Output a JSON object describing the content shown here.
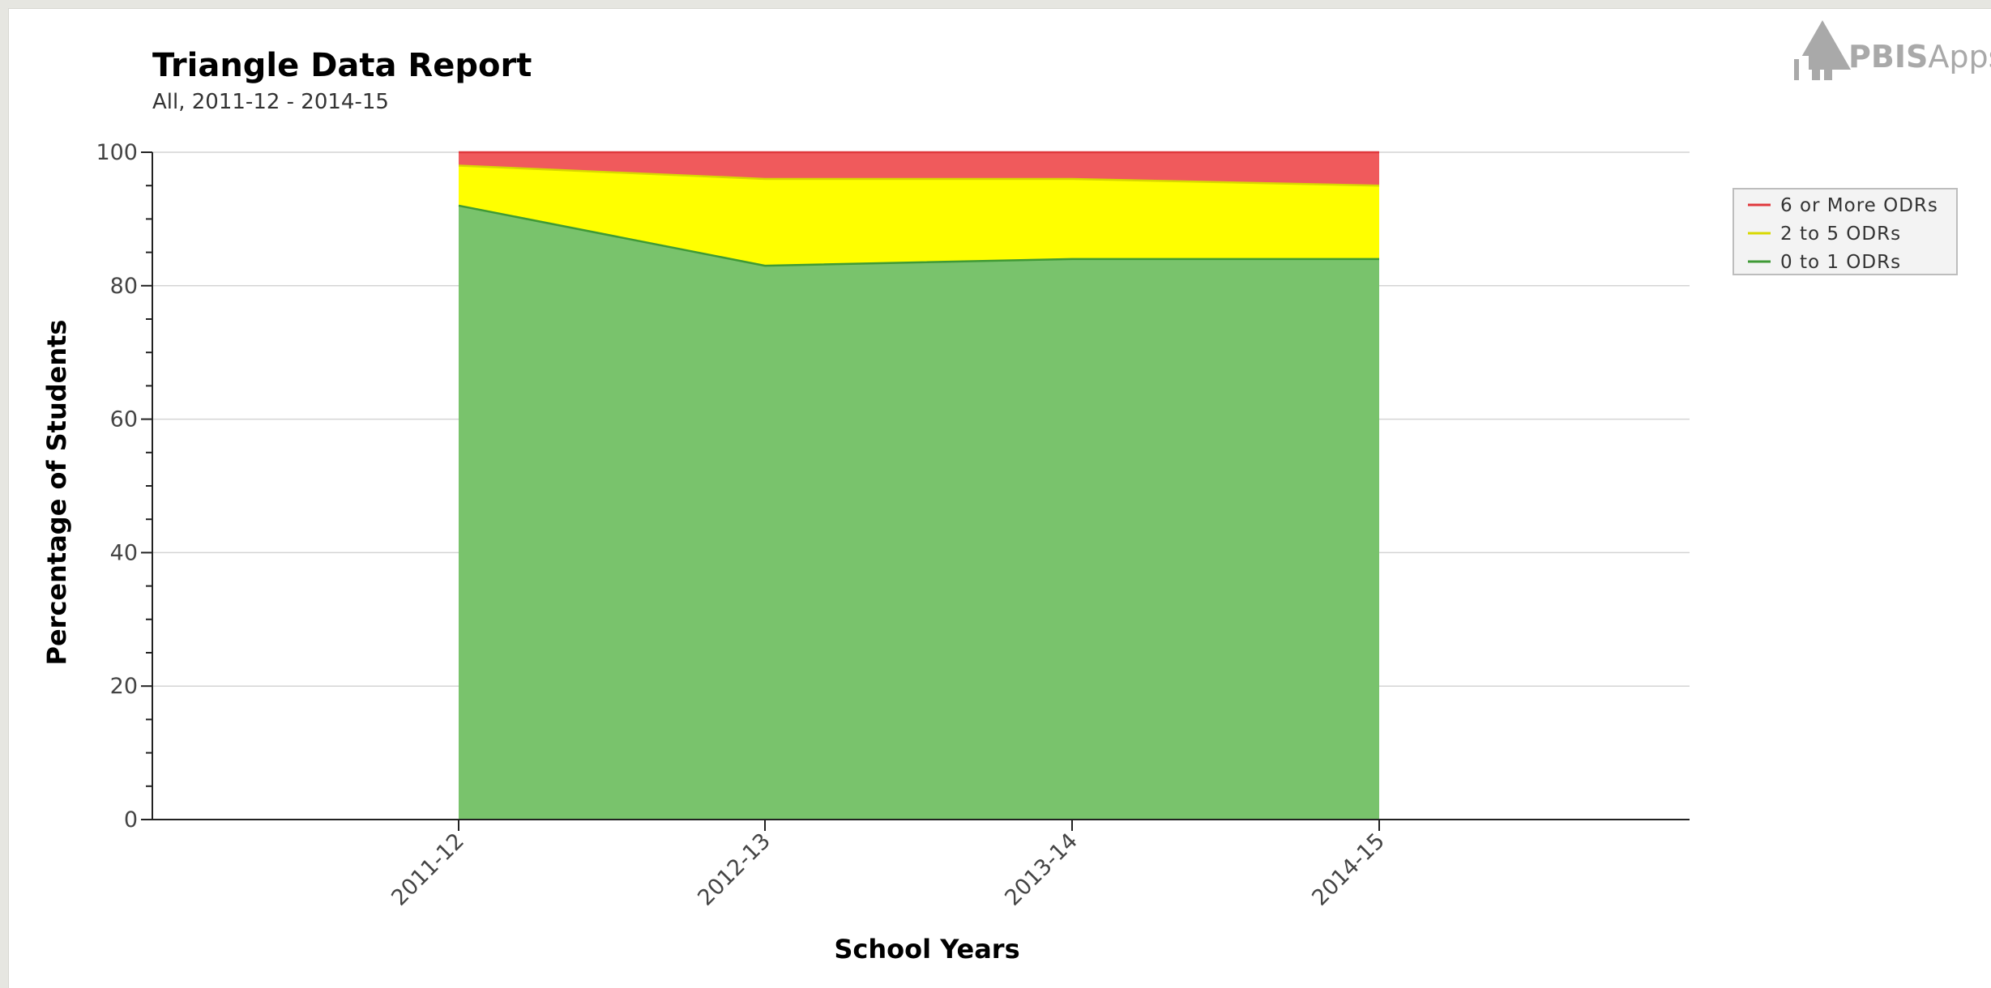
{
  "logo": {
    "text_bold": "PBIS",
    "text_light": "Apps"
  },
  "chart_data": {
    "type": "area",
    "stacked": true,
    "title": "Triangle Data Report",
    "subtitle": "All, 2011-12 - 2014-15",
    "xlabel": "School Years",
    "ylabel": "Percentage of Students",
    "ylim": [
      0,
      100
    ],
    "yticks": [
      "0",
      "20",
      "40",
      "60",
      "80",
      "100"
    ],
    "categories": [
      "2011-12",
      "2012-13",
      "2013-14",
      "2014-15"
    ],
    "grid": true,
    "legend_position": "right",
    "series": [
      {
        "name": "0 to 1 ODRs",
        "color": "#79c36c",
        "line_color": "#3f9a36",
        "values": [
          92,
          83,
          84,
          84
        ]
      },
      {
        "name": "2 to 5 ODRs",
        "color": "#ffff00",
        "line_color": "#d8d800",
        "values": [
          6,
          13,
          12,
          11
        ]
      },
      {
        "name": "6 or More ODRs",
        "color": "#f05a5c",
        "line_color": "#e0383c",
        "values": [
          2,
          4,
          4,
          5
        ]
      }
    ],
    "legend_order": [
      "6 or More ODRs",
      "2 to 5 ODRs",
      "0 to 1 ODRs"
    ]
  }
}
